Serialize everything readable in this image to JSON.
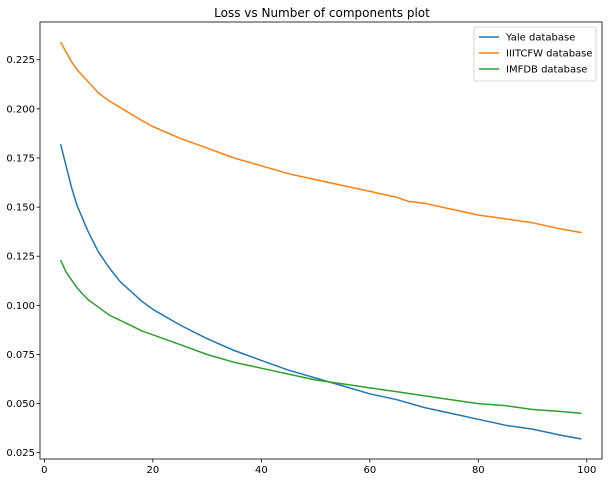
{
  "chart_data": {
    "type": "line",
    "title": "Loss vs Number of components plot",
    "xlabel": "",
    "ylabel": "",
    "xlim": [
      -0.8,
      102.8
    ],
    "ylim": [
      0.0218,
      0.2442
    ],
    "xticks": [
      0,
      20,
      40,
      60,
      80,
      100
    ],
    "yticks": [
      0.025,
      0.05,
      0.075,
      0.1,
      0.125,
      0.15,
      0.175,
      0.2,
      0.225
    ],
    "grid": false,
    "legend": "top-right",
    "series": [
      {
        "name": "Yale database",
        "color": "#1f77b4",
        "points": [
          [
            3,
            0.182
          ],
          [
            5,
            0.16
          ],
          [
            6,
            0.151
          ],
          [
            8,
            0.138
          ],
          [
            10,
            0.127
          ],
          [
            12,
            0.119
          ],
          [
            14,
            0.112
          ],
          [
            16,
            0.107
          ],
          [
            18,
            0.102
          ],
          [
            20,
            0.098
          ],
          [
            25,
            0.09
          ],
          [
            30,
            0.083
          ],
          [
            35,
            0.077
          ],
          [
            40,
            0.072
          ],
          [
            45,
            0.067
          ],
          [
            50,
            0.063
          ],
          [
            55,
            0.059
          ],
          [
            60,
            0.055
          ],
          [
            65,
            0.052
          ],
          [
            70,
            0.048
          ],
          [
            75,
            0.045
          ],
          [
            80,
            0.042
          ],
          [
            85,
            0.039
          ],
          [
            90,
            0.037
          ],
          [
            95,
            0.034
          ],
          [
            99,
            0.032
          ]
        ]
      },
      {
        "name": "IIITCFW database",
        "color": "#ff7f0e",
        "points": [
          [
            3,
            0.234
          ],
          [
            4,
            0.229
          ],
          [
            5,
            0.224
          ],
          [
            6,
            0.22
          ],
          [
            8,
            0.214
          ],
          [
            10,
            0.208
          ],
          [
            12,
            0.204
          ],
          [
            15,
            0.199
          ],
          [
            18,
            0.194
          ],
          [
            20,
            0.191
          ],
          [
            25,
            0.185
          ],
          [
            30,
            0.18
          ],
          [
            35,
            0.175
          ],
          [
            40,
            0.171
          ],
          [
            45,
            0.167
          ],
          [
            50,
            0.164
          ],
          [
            55,
            0.161
          ],
          [
            60,
            0.158
          ],
          [
            65,
            0.155
          ],
          [
            67,
            0.153
          ],
          [
            70,
            0.152
          ],
          [
            75,
            0.149
          ],
          [
            80,
            0.146
          ],
          [
            85,
            0.144
          ],
          [
            90,
            0.142
          ],
          [
            95,
            0.139
          ],
          [
            99,
            0.137
          ]
        ]
      },
      {
        "name": "IMFDB database",
        "color": "#2ca02c",
        "points": [
          [
            3,
            0.123
          ],
          [
            4,
            0.117
          ],
          [
            6,
            0.109
          ],
          [
            8,
            0.103
          ],
          [
            10,
            0.099
          ],
          [
            12,
            0.095
          ],
          [
            15,
            0.091
          ],
          [
            18,
            0.087
          ],
          [
            20,
            0.085
          ],
          [
            25,
            0.08
          ],
          [
            30,
            0.075
          ],
          [
            35,
            0.071
          ],
          [
            40,
            0.068
          ],
          [
            45,
            0.065
          ],
          [
            50,
            0.062
          ],
          [
            55,
            0.06
          ],
          [
            60,
            0.058
          ],
          [
            65,
            0.056
          ],
          [
            70,
            0.054
          ],
          [
            75,
            0.052
          ],
          [
            80,
            0.05
          ],
          [
            85,
            0.049
          ],
          [
            90,
            0.047
          ],
          [
            95,
            0.046
          ],
          [
            99,
            0.045
          ]
        ]
      }
    ]
  }
}
